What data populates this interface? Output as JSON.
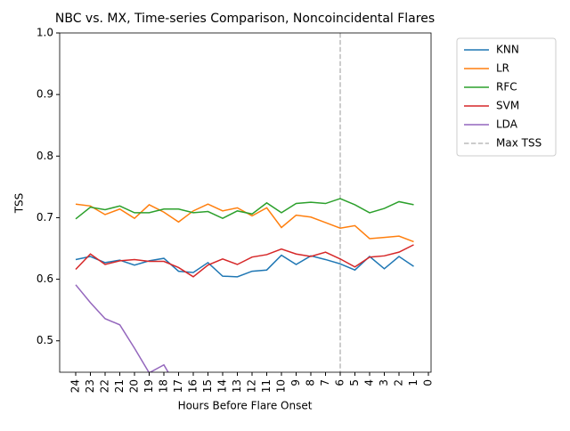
{
  "chart_data": {
    "type": "line",
    "title": "NBC vs. MX, Time-series Comparison, Noncoincidental Flares",
    "xlabel": "Hours Before Flare Onset",
    "ylabel": "TSS",
    "categories": [
      "24",
      "23",
      "22",
      "21",
      "20",
      "19",
      "18",
      "17",
      "16",
      "15",
      "14",
      "13",
      "12",
      "11",
      "10",
      "9",
      "8",
      "7",
      "6",
      "5",
      "4",
      "3",
      "2",
      "1",
      "0"
    ],
    "series": [
      {
        "name": "KNN",
        "color": "#1f77b4",
        "values": [
          0.632,
          0.637,
          0.627,
          0.631,
          0.623,
          0.63,
          0.634,
          0.613,
          0.611,
          0.627,
          0.605,
          0.604,
          0.613,
          0.615,
          0.639,
          0.624,
          0.638,
          0.632,
          0.625,
          0.615,
          0.637,
          0.617,
          0.637,
          0.621,
          null
        ]
      },
      {
        "name": "LR",
        "color": "#ff7f0e",
        "values": [
          0.722,
          0.719,
          0.705,
          0.714,
          0.699,
          0.721,
          0.709,
          0.693,
          0.711,
          0.722,
          0.711,
          0.716,
          0.703,
          0.716,
          0.684,
          0.704,
          0.701,
          0.692,
          0.683,
          0.687,
          0.666,
          0.668,
          0.67,
          0.661,
          null
        ]
      },
      {
        "name": "RFC",
        "color": "#2ca02c",
        "values": [
          0.698,
          0.717,
          0.713,
          0.719,
          0.708,
          0.708,
          0.714,
          0.714,
          0.708,
          0.71,
          0.699,
          0.711,
          0.706,
          0.724,
          0.708,
          0.723,
          0.725,
          0.723,
          0.731,
          0.721,
          0.708,
          0.715,
          0.726,
          0.721,
          null
        ]
      },
      {
        "name": "SVM",
        "color": "#d62728",
        "values": [
          0.616,
          0.641,
          0.624,
          0.63,
          0.632,
          0.629,
          0.629,
          0.619,
          0.604,
          0.623,
          0.633,
          0.624,
          0.636,
          0.64,
          0.649,
          0.641,
          0.637,
          0.644,
          0.633,
          0.62,
          0.636,
          0.638,
          0.644,
          0.656,
          null
        ]
      },
      {
        "name": "LDA",
        "color": "#9467bd",
        "values": [
          0.591,
          0.562,
          0.536,
          0.526,
          0.488,
          0.448,
          0.461,
          0.42,
          null,
          null,
          null,
          null,
          null,
          null,
          null,
          null,
          null,
          null,
          null,
          null,
          null,
          null,
          null,
          null,
          null
        ]
      }
    ],
    "vlines": [
      {
        "name": "Max TSS",
        "x": "6",
        "color": "#bbbbbb"
      }
    ],
    "ylim": [
      0.449,
      1.0
    ],
    "yticks": [
      0.5,
      0.6,
      0.7,
      0.8,
      0.9,
      {
        "value": 1,
        "label": "1.0"
      }
    ],
    "legend": "outside upper right"
  }
}
